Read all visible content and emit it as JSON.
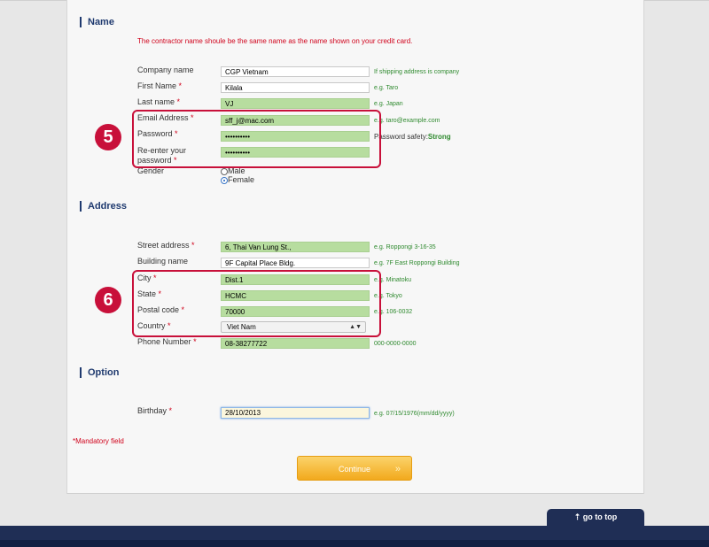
{
  "sections": {
    "name_title": "Name",
    "address_title": "Address",
    "option_title": "Option"
  },
  "notice": "The contractor name shoule be the same name as the name shown on your credit card.",
  "required_mark": "*",
  "name_fields": {
    "company": {
      "label": "Company name",
      "value": "CGP Vietnam",
      "hint": "If shipping address is company"
    },
    "first_name": {
      "label": "First Name",
      "value": "Kilala",
      "hint": "e.g. Taro"
    },
    "last_name": {
      "label": "Last name",
      "value": "VJ",
      "hint": "e.g. Japan"
    },
    "email": {
      "label": "Email Address",
      "value": "sff_j@mac.com",
      "hint": "e.g. taro@example.com"
    },
    "password": {
      "label": "Password",
      "value": "••••••••••",
      "hint_label": "Password safety:",
      "hint_value": "Strong"
    },
    "reenter": {
      "label_line1": "Re-enter your",
      "label_line2": "password",
      "value": "••••••••••"
    },
    "gender": {
      "label": "Gender",
      "options": [
        "Male",
        "Female"
      ],
      "selected": "Female"
    }
  },
  "address_fields": {
    "street": {
      "label": "Street address",
      "value": "6, Thai Van Lung St.,",
      "hint": "e.g. Roppongi 3-16-35"
    },
    "building": {
      "label": "Building name",
      "value": "9F Capital Place Bldg.",
      "hint": "e.g. 7F East Roppongi Building"
    },
    "city": {
      "label": "City",
      "value": "Dist.1",
      "hint": "e.g. Minatoku"
    },
    "state": {
      "label": "State",
      "value": "HCMC",
      "hint": "e.g. Tokyo"
    },
    "postal": {
      "label": "Postal code",
      "value": "70000",
      "hint": "e.g. 106-0032"
    },
    "country": {
      "label": "Country",
      "value": "Viet Nam"
    },
    "phone": {
      "label": "Phone Number",
      "value": "08-38277722",
      "hint": "000-0000-0000"
    }
  },
  "option_fields": {
    "birthday": {
      "label": "Birthday",
      "value": "28/10/2013",
      "hint": "e.g. 07/15/1976(mm/dd/yyyy)"
    }
  },
  "mandatory_note": "*Mandatory field",
  "continue_label": "Continue",
  "continue_chevron": "»",
  "go_to_top": "go to top",
  "go_to_top_icon": "⇡",
  "step_markers": [
    "5",
    "6"
  ],
  "colors": {
    "accent_red": "#c8103a",
    "valid_field_green": "#b7dd9f",
    "navy": "#1f2e55",
    "button_orange": "#f2a91d"
  }
}
